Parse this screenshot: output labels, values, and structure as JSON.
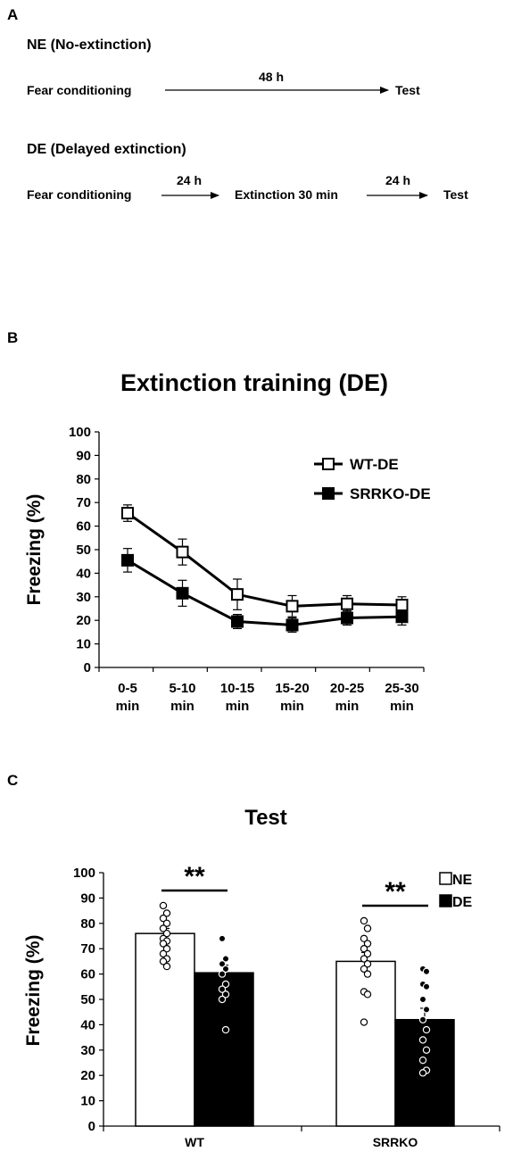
{
  "panel_a": {
    "label": "A",
    "ne": {
      "title": "NE (No-extinction)",
      "start": "Fear conditioning",
      "interval": "48 h",
      "end": "Test"
    },
    "de": {
      "title": "DE (Delayed extinction)",
      "start": "Fear conditioning",
      "interval1": "24 h",
      "middle": "Extinction 30 min",
      "interval2": "24 h",
      "end": "Test"
    }
  },
  "chart_data": [
    {
      "panel": "B",
      "type": "line",
      "title": "Extinction training (DE)",
      "xlabel": "",
      "ylabel": "Freezing (%)",
      "categories": [
        [
          "0-5",
          "min"
        ],
        [
          "5-10",
          "min"
        ],
        [
          "10-15",
          "min"
        ],
        [
          "15-20",
          "min"
        ],
        [
          "20-25",
          "min"
        ],
        [
          "25-30",
          "min"
        ]
      ],
      "ylim": [
        0,
        100
      ],
      "yticks": [
        0,
        10,
        20,
        30,
        40,
        50,
        60,
        70,
        80,
        90,
        100
      ],
      "grid": false,
      "legend_position": "top-right",
      "series": [
        {
          "name": "WT-DE",
          "marker": "open-square",
          "values": [
            65.5,
            49,
            31,
            26,
            27,
            26.5
          ],
          "errors": [
            3.5,
            5.5,
            6.5,
            4.5,
            3.5,
            3.5
          ]
        },
        {
          "name": "SRRKO-DE",
          "marker": "filled-square",
          "values": [
            45.5,
            31.5,
            19.5,
            18,
            21,
            21.5
          ],
          "errors": [
            5,
            5.5,
            3,
            3,
            3,
            3.5
          ]
        }
      ]
    },
    {
      "panel": "C",
      "type": "bar",
      "title": "Test",
      "xlabel": "",
      "ylabel": "Freezing (%)",
      "categories": [
        "WT",
        "SRRKO"
      ],
      "ylim": [
        0,
        100
      ],
      "yticks": [
        0,
        10,
        20,
        30,
        40,
        50,
        60,
        70,
        80,
        90,
        100
      ],
      "grid": false,
      "legend_position": "top-right",
      "series": [
        {
          "name": "NE",
          "color": "#ffffff",
          "values": [
            76,
            65
          ],
          "errors": [
            2,
            3.5
          ]
        },
        {
          "name": "DE",
          "color": "#000000",
          "values": [
            60.5,
            42
          ],
          "errors": [
            3,
            4.5
          ]
        }
      ],
      "individual_points": {
        "WT-NE": [
          87,
          84,
          82,
          80,
          78,
          76,
          74,
          73,
          72,
          70,
          68,
          66,
          65,
          63
        ],
        "WT-DE": [
          74,
          66,
          64,
          62,
          60,
          56,
          54,
          52,
          50,
          38
        ],
        "SRRKO-NE": [
          81,
          78,
          74,
          72,
          70,
          68,
          66,
          64,
          62,
          60,
          53,
          52,
          41
        ],
        "SRRKO-DE": [
          62,
          61,
          56,
          55,
          50,
          46,
          42,
          38,
          34,
          30,
          26,
          22,
          21
        ]
      },
      "significance": [
        {
          "category": "WT",
          "label": "**"
        },
        {
          "category": "SRRKO",
          "label": "**"
        }
      ]
    }
  ]
}
